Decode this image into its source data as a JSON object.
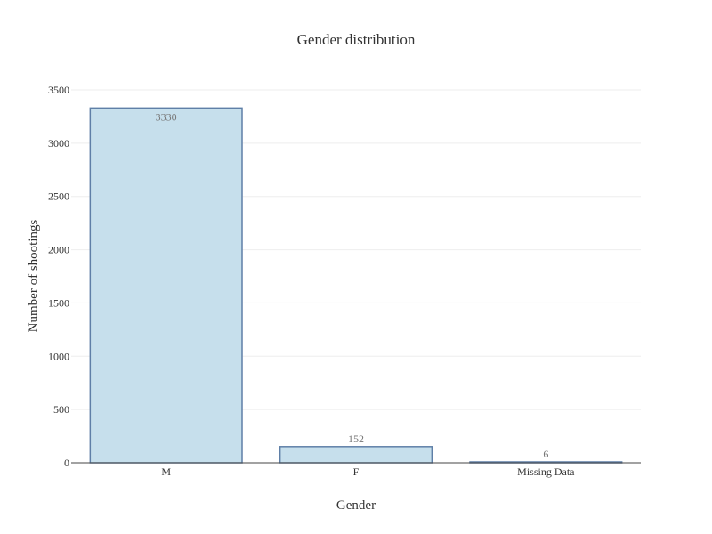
{
  "chart_data": {
    "type": "bar",
    "title": "Gender distribution",
    "xlabel": "Gender",
    "ylabel": "Number of shootings",
    "categories": [
      "M",
      "F",
      "Missing Data"
    ],
    "values": [
      3330,
      152,
      6
    ],
    "data_labels": [
      "3330",
      "152",
      "6"
    ],
    "ylim": [
      0,
      3500
    ],
    "yticks": [
      0,
      500,
      1000,
      1500,
      2000,
      2500,
      3000,
      3500
    ],
    "grid": true,
    "legend": "none",
    "colors": {
      "bar_fill": "#c6dfec",
      "bar_stroke": "#5f7fa7",
      "grid": "#eeeeee",
      "axis": "#444444",
      "text": "#333333",
      "data_label": "#777777"
    }
  }
}
